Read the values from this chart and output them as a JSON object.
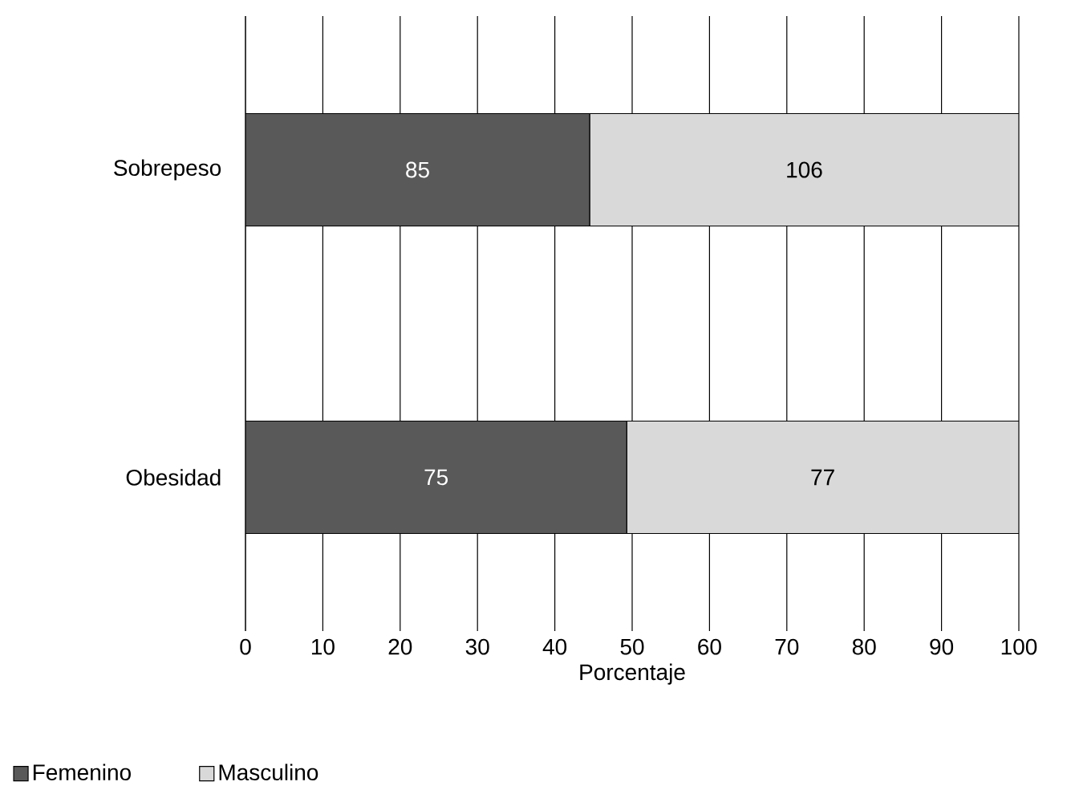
{
  "chart_data": {
    "type": "bar",
    "orientation": "horizontal",
    "stacked": true,
    "xlabel": "Porcentaje",
    "categories": [
      "Sobrepeso",
      "Obesidad"
    ],
    "series": [
      {
        "name": "Femenino",
        "color": "#595959",
        "values": [
          44.5,
          49.3
        ]
      },
      {
        "name": "Masculino",
        "color": "#d9d9d9",
        "values": [
          55.5,
          50.7
        ]
      }
    ],
    "annotations": [
      "85",
      "106",
      "75",
      "77"
    ],
    "xlim": [
      0,
      100
    ],
    "xticks": [
      0,
      10,
      20,
      30,
      40,
      50,
      60,
      70,
      80,
      90,
      100
    ],
    "grid": "x",
    "legend": "bottom left"
  }
}
